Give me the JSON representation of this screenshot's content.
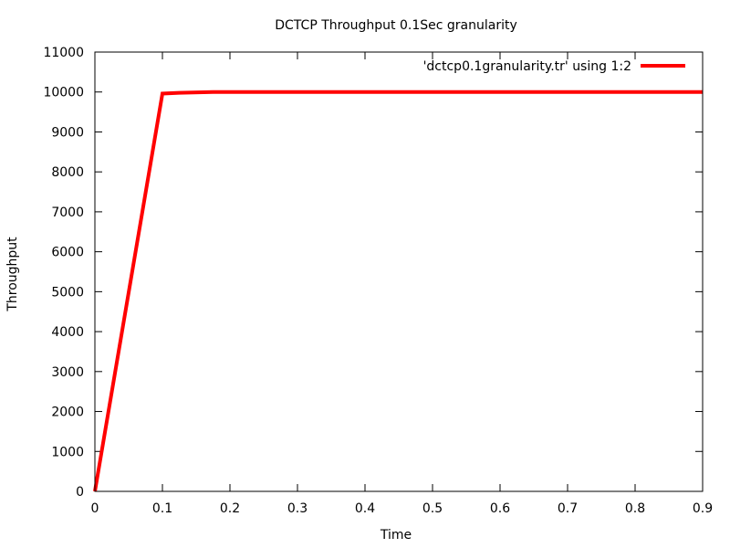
{
  "chart_data": {
    "type": "line",
    "title": "DCTCP Throughput 0.1Sec granularity",
    "xlabel": "Time",
    "ylabel": "Throughput",
    "xlim": [
      0,
      0.9
    ],
    "ylim": [
      0,
      11000
    ],
    "x_ticks": [
      "0",
      "0.1",
      "0.2",
      "0.3",
      "0.4",
      "0.5",
      "0.6",
      "0.7",
      "0.8",
      "0.9"
    ],
    "y_ticks": [
      "0",
      "1000",
      "2000",
      "3000",
      "4000",
      "5000",
      "6000",
      "7000",
      "8000",
      "9000",
      "10000",
      "11000"
    ],
    "grid": false,
    "legend_position": "top-right",
    "series": [
      {
        "name": "'dctcp0.1granularity.tr' using 1:2",
        "color": "#ff0000",
        "points": [
          [
            0,
            0
          ],
          [
            0.1,
            9960
          ],
          [
            0.125,
            9980
          ],
          [
            0.175,
            10000
          ],
          [
            0.9,
            10000
          ]
        ]
      }
    ]
  }
}
